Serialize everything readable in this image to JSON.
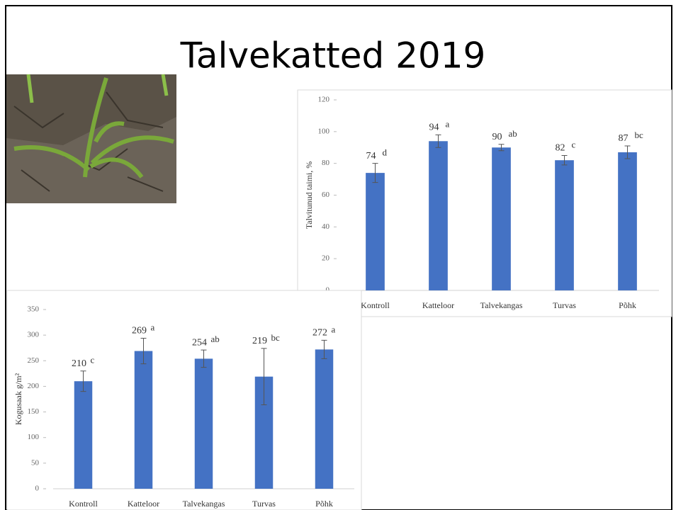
{
  "slide": {
    "title": "Talvekatted  2019"
  },
  "chart_data": [
    {
      "type": "bar",
      "ylabel": "Talvitunud taimi, %",
      "categories": [
        "Kontroll",
        "Katteloor",
        "Talvekangas",
        "Turvas",
        "Põhk"
      ],
      "values": [
        74,
        94,
        90,
        82,
        87
      ],
      "errors": [
        6,
        4,
        2,
        3,
        4
      ],
      "letters": [
        "d",
        "a",
        "ab",
        "c",
        "bc"
      ],
      "color": "#4472c4",
      "ylim": [
        0,
        120
      ],
      "yticks": [
        0,
        20,
        40,
        60,
        80,
        100,
        120
      ]
    },
    {
      "type": "bar",
      "ylabel": "Kogusaak g/m²",
      "categories": [
        "Kontroll",
        "Katteloor",
        "Talvekangas",
        "Turvas",
        "Põhk"
      ],
      "values": [
        210,
        269,
        254,
        219,
        272
      ],
      "errors": [
        20,
        25,
        17,
        55,
        18
      ],
      "letters": [
        "c",
        "a",
        "ab",
        "bc",
        "a"
      ],
      "color": "#4472c4",
      "ylim": [
        0,
        350
      ],
      "yticks": [
        0,
        50,
        100,
        150,
        200,
        250,
        300,
        350
      ]
    }
  ]
}
